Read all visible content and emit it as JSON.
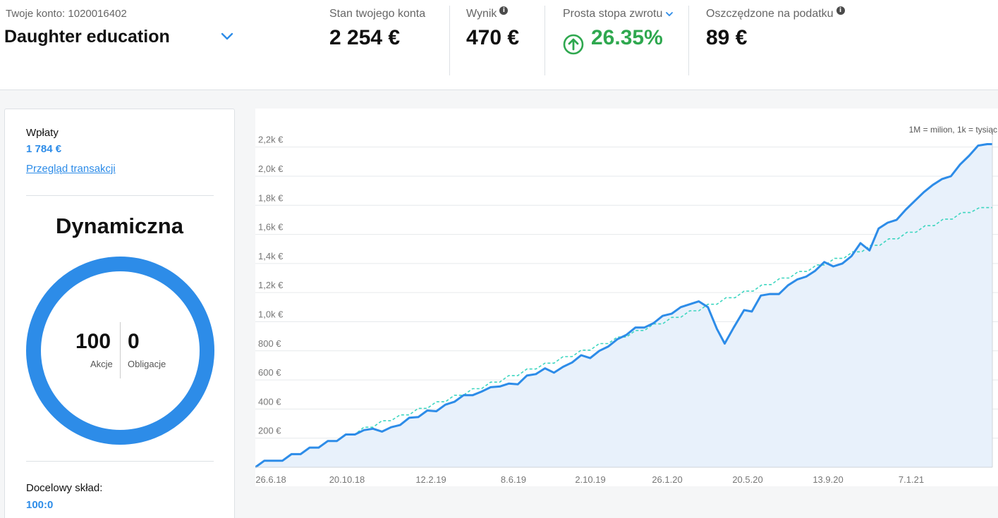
{
  "account": {
    "label": "Twoje konto: 1020016402",
    "name": "Daughter education"
  },
  "stats": {
    "balance": {
      "label": "Stan twojego konta",
      "value": "2 254 €"
    },
    "result": {
      "label": "Wynik",
      "value": "470 €"
    },
    "return": {
      "label": "Prosta stopa zwrotu",
      "value": "26.35%"
    },
    "tax_saved": {
      "label": "Oszczędzone na podatku",
      "value": "89 €"
    }
  },
  "sidebar": {
    "deposits_label": "Wpłaty",
    "deposits_value": "1 784 €",
    "transactions_link": "Przegląd transakcji",
    "profile_title": "Dynamiczna",
    "stocks_value": "100",
    "stocks_label": "Akcje",
    "bonds_value": "0",
    "bonds_label": "Obligacje",
    "target_label": "Docelowy skład:",
    "target_value": "100:0"
  },
  "colors": {
    "accent": "#2d8ce8",
    "positive": "#2fa84f",
    "deposit_line": "#3dd6c0",
    "area_fill": "#e8f1fb"
  },
  "chart_data": {
    "type": "area",
    "unit_note": "1M = milion, 1k = tysiąc",
    "x_ticks": [
      "26.6.18",
      "20.10.18",
      "12.2.19",
      "8.6.19",
      "2.10.19",
      "26.1.20",
      "20.5.20",
      "13.9.20",
      "7.1.21"
    ],
    "y_ticks": [
      "200 €",
      "400 €",
      "600 €",
      "800 €",
      "1,0k €",
      "1,2k €",
      "1,4k €",
      "1,6k €",
      "1,8k €",
      "2,0k €",
      "2,2k €"
    ],
    "y_tick_values": [
      200,
      400,
      600,
      800,
      1000,
      1200,
      1400,
      1600,
      1800,
      2000,
      2200
    ],
    "ylim": [
      0,
      2300
    ],
    "x_days_range": [
      0,
      935
    ],
    "series": [
      {
        "type": "area-line",
        "style": "solid",
        "points": [
          [
            0,
            0
          ],
          [
            14,
            45
          ],
          [
            28,
            45
          ],
          [
            42,
            45
          ],
          [
            56,
            90
          ],
          [
            70,
            90
          ],
          [
            84,
            135
          ],
          [
            98,
            135
          ],
          [
            112,
            180
          ],
          [
            126,
            180
          ],
          [
            140,
            225
          ],
          [
            154,
            225
          ],
          [
            168,
            255
          ],
          [
            182,
            265
          ],
          [
            196,
            245
          ],
          [
            210,
            275
          ],
          [
            224,
            290
          ],
          [
            238,
            340
          ],
          [
            252,
            345
          ],
          [
            266,
            390
          ],
          [
            280,
            385
          ],
          [
            294,
            430
          ],
          [
            308,
            450
          ],
          [
            322,
            495
          ],
          [
            336,
            495
          ],
          [
            350,
            520
          ],
          [
            364,
            550
          ],
          [
            378,
            555
          ],
          [
            392,
            575
          ],
          [
            406,
            570
          ],
          [
            420,
            630
          ],
          [
            434,
            640
          ],
          [
            448,
            680
          ],
          [
            462,
            650
          ],
          [
            476,
            690
          ],
          [
            490,
            720
          ],
          [
            504,
            770
          ],
          [
            518,
            750
          ],
          [
            532,
            800
          ],
          [
            546,
            830
          ],
          [
            560,
            880
          ],
          [
            574,
            910
          ],
          [
            588,
            960
          ],
          [
            602,
            960
          ],
          [
            616,
            990
          ],
          [
            630,
            1040
          ],
          [
            644,
            1055
          ],
          [
            658,
            1100
          ],
          [
            672,
            1120
          ],
          [
            686,
            1140
          ],
          [
            700,
            1100
          ],
          [
            714,
            950
          ],
          [
            726,
            850
          ],
          [
            740,
            960
          ],
          [
            756,
            1080
          ],
          [
            768,
            1070
          ],
          [
            782,
            1180
          ],
          [
            796,
            1190
          ],
          [
            810,
            1190
          ],
          [
            824,
            1250
          ],
          [
            838,
            1290
          ],
          [
            852,
            1310
          ],
          [
            866,
            1350
          ],
          [
            880,
            1410
          ],
          [
            894,
            1380
          ],
          [
            908,
            1400
          ],
          [
            922,
            1450
          ],
          [
            936,
            1540
          ],
          [
            950,
            1490
          ],
          [
            964,
            1640
          ],
          [
            978,
            1680
          ],
          [
            992,
            1700
          ],
          [
            1006,
            1770
          ],
          [
            1020,
            1830
          ],
          [
            1034,
            1890
          ],
          [
            1048,
            1940
          ],
          [
            1062,
            1980
          ],
          [
            1076,
            2000
          ],
          [
            1090,
            2080
          ],
          [
            1104,
            2140
          ],
          [
            1118,
            2210
          ],
          [
            1132,
            2220
          ],
          [
            1140,
            2220
          ]
        ]
      },
      {
        "type": "line",
        "style": "dashed",
        "points": [
          [
            0,
            0
          ],
          [
            14,
            45
          ],
          [
            28,
            45
          ],
          [
            42,
            45
          ],
          [
            56,
            90
          ],
          [
            70,
            90
          ],
          [
            84,
            135
          ],
          [
            98,
            135
          ],
          [
            112,
            180
          ],
          [
            126,
            180
          ],
          [
            140,
            225
          ],
          [
            154,
            225
          ],
          [
            168,
            275
          ],
          [
            182,
            275
          ],
          [
            196,
            320
          ],
          [
            210,
            320
          ],
          [
            224,
            360
          ],
          [
            238,
            360
          ],
          [
            252,
            405
          ],
          [
            266,
            405
          ],
          [
            280,
            450
          ],
          [
            294,
            450
          ],
          [
            308,
            495
          ],
          [
            322,
            495
          ],
          [
            336,
            540
          ],
          [
            350,
            540
          ],
          [
            364,
            585
          ],
          [
            378,
            585
          ],
          [
            392,
            630
          ],
          [
            406,
            630
          ],
          [
            420,
            675
          ],
          [
            434,
            675
          ],
          [
            448,
            715
          ],
          [
            462,
            715
          ],
          [
            476,
            760
          ],
          [
            490,
            760
          ],
          [
            504,
            805
          ],
          [
            518,
            805
          ],
          [
            532,
            850
          ],
          [
            546,
            850
          ],
          [
            560,
            895
          ],
          [
            574,
            895
          ],
          [
            588,
            940
          ],
          [
            602,
            940
          ],
          [
            616,
            985
          ],
          [
            630,
            985
          ],
          [
            644,
            1030
          ],
          [
            658,
            1030
          ],
          [
            672,
            1075
          ],
          [
            686,
            1075
          ],
          [
            700,
            1120
          ],
          [
            714,
            1120
          ],
          [
            728,
            1165
          ],
          [
            742,
            1165
          ],
          [
            756,
            1210
          ],
          [
            770,
            1210
          ],
          [
            784,
            1255
          ],
          [
            798,
            1255
          ],
          [
            812,
            1300
          ],
          [
            826,
            1300
          ],
          [
            840,
            1345
          ],
          [
            854,
            1345
          ],
          [
            868,
            1390
          ],
          [
            882,
            1390
          ],
          [
            896,
            1435
          ],
          [
            910,
            1435
          ],
          [
            924,
            1480
          ],
          [
            938,
            1480
          ],
          [
            952,
            1525
          ],
          [
            966,
            1525
          ],
          [
            980,
            1570
          ],
          [
            994,
            1570
          ],
          [
            1008,
            1615
          ],
          [
            1022,
            1615
          ],
          [
            1036,
            1660
          ],
          [
            1050,
            1660
          ],
          [
            1064,
            1705
          ],
          [
            1078,
            1705
          ],
          [
            1092,
            1750
          ],
          [
            1106,
            1750
          ],
          [
            1120,
            1784
          ],
          [
            1140,
            1784
          ]
        ]
      }
    ]
  }
}
